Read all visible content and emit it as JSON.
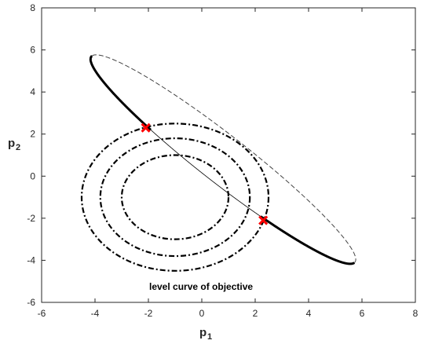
{
  "chart_data": {
    "type": "line",
    "xlim": [
      -6,
      8
    ],
    "ylim": [
      -6,
      8
    ],
    "xticks": [
      -6,
      -4,
      -2,
      0,
      2,
      4,
      6,
      8
    ],
    "yticks": [
      -6,
      -4,
      -2,
      0,
      2,
      4,
      6,
      8
    ],
    "xlabel": {
      "main": "p",
      "sub": "1"
    },
    "ylabel": {
      "main": "p",
      "sub": "2"
    },
    "annotation": "level curve of objective",
    "level_curves": {
      "center": [
        -1,
        -1
      ],
      "radii": [
        2,
        2.8,
        3.5
      ],
      "style": "dash-dot",
      "color": "#000000"
    },
    "constraint_ellipse": {
      "center": [
        0.8,
        0.8
      ],
      "semi_major": 6.95,
      "semi_minor": 1.02,
      "angle_deg": -45,
      "thick_arc_color": "#000000",
      "thin_arc_color": "#000000",
      "dashed_arc_color": "#444444"
    },
    "optimal_points": {
      "color": "#ff0000",
      "points": [
        {
          "x": -2.1,
          "y": 2.3
        },
        {
          "x": 2.3,
          "y": -2.1
        }
      ]
    }
  }
}
